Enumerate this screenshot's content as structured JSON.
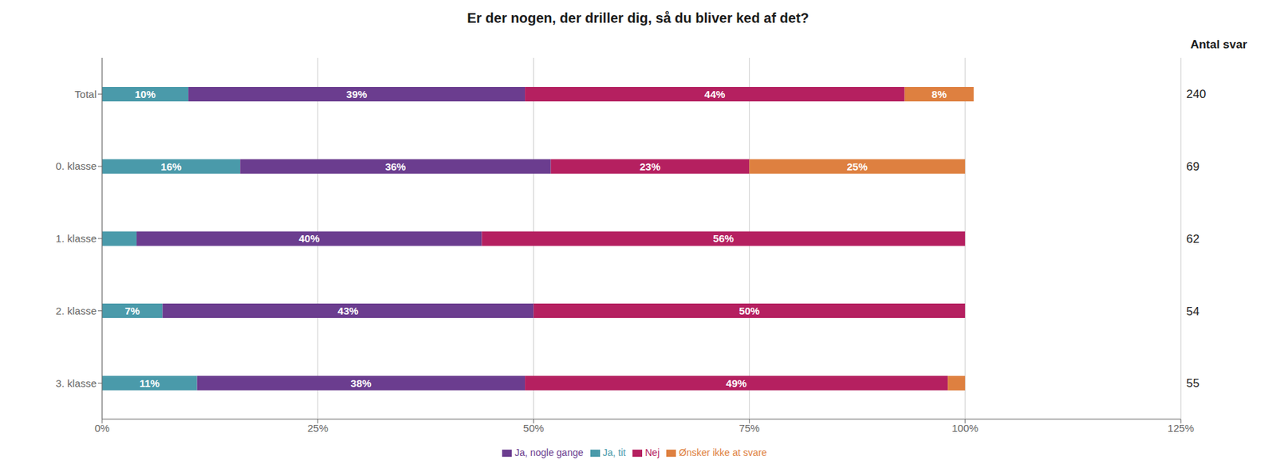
{
  "chart_data": {
    "type": "bar",
    "title": "Er der nogen, der driller dig, så du bliver ked af det?",
    "orientation": "horizontal",
    "stacked": true,
    "data_labels": true,
    "grid": true,
    "legend": "bottom",
    "categories": [
      "Total",
      "0. klasse",
      "1. klasse",
      "2. klasse",
      "3. klasse"
    ],
    "series": [
      {
        "name": "Ja, tit",
        "color": "#4a9aaa",
        "values": [
          10,
          16,
          4,
          7,
          11
        ],
        "value_labels": [
          "10%",
          "16%",
          null,
          "7%",
          "11%"
        ]
      },
      {
        "name": "Ja, nogle gange",
        "color": "#6b3d8f",
        "values": [
          39,
          36,
          40,
          43,
          38
        ],
        "value_labels": [
          "39%",
          "36%",
          "40%",
          "43%",
          "38%"
        ]
      },
      {
        "name": "Nej",
        "color": "#b52060",
        "values": [
          44,
          23,
          56,
          50,
          49
        ],
        "value_labels": [
          "44%",
          "23%",
          "56%",
          "50%",
          "49%"
        ]
      },
      {
        "name": "Ønsker ikke at svare",
        "color": "#de8040",
        "values": [
          8,
          25,
          0,
          0,
          2
        ],
        "value_labels": [
          "8%",
          "25%",
          null,
          null,
          null
        ]
      }
    ],
    "xlim": [
      0,
      125
    ],
    "xticks": [
      {
        "value": 0,
        "label": "0%"
      },
      {
        "value": 25,
        "label": "25%"
      },
      {
        "value": 50,
        "label": "50%"
      },
      {
        "value": 75,
        "label": "75%"
      },
      {
        "value": 100,
        "label": "100%"
      },
      {
        "value": 125,
        "label": "125%"
      }
    ],
    "counts_title": "Antal svar",
    "counts": [
      240,
      69,
      62,
      54,
      55
    ]
  }
}
